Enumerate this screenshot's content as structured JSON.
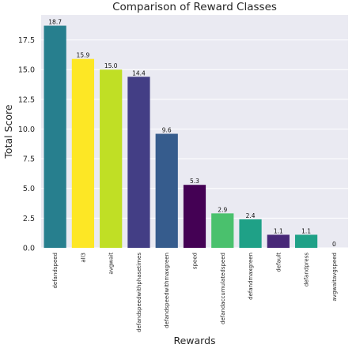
{
  "chart_data": {
    "type": "bar",
    "title": "Comparison of Reward Classes",
    "xlabel": "Rewards",
    "ylabel": "Total Score",
    "categories": [
      "defandspeed",
      "all3",
      "avgwait",
      "defandspeedwithphasetimes",
      "defandspeedwithmaxgreen",
      "speed",
      "defandaccumulatedspeed",
      "defandmaxgreen",
      "default",
      "defandpress",
      "avgwaitavgspeed"
    ],
    "values": [
      18.7,
      15.9,
      15.0,
      14.4,
      9.6,
      5.3,
      2.9,
      2.4,
      1.1,
      1.1,
      0
    ],
    "value_labels": [
      "18.7",
      "15.9",
      "15.0",
      "14.4",
      "9.6",
      "5.3",
      "2.9",
      "2.4",
      "1.1",
      "1.1",
      "0"
    ],
    "colors": [
      "#277f8e",
      "#fde725",
      "#c0df25",
      "#433e85",
      "#365c8d",
      "#440154",
      "#4ac16d",
      "#1fa187",
      "#482878",
      "#1fa187",
      "#2c728e"
    ],
    "y_ticks": [
      "0.0",
      "2.5",
      "5.0",
      "7.5",
      "10.0",
      "12.5",
      "15.0",
      "17.5"
    ],
    "ylim": [
      0,
      19.6
    ],
    "grid": true,
    "legend": "none",
    "background": "#eaeaf2"
  }
}
